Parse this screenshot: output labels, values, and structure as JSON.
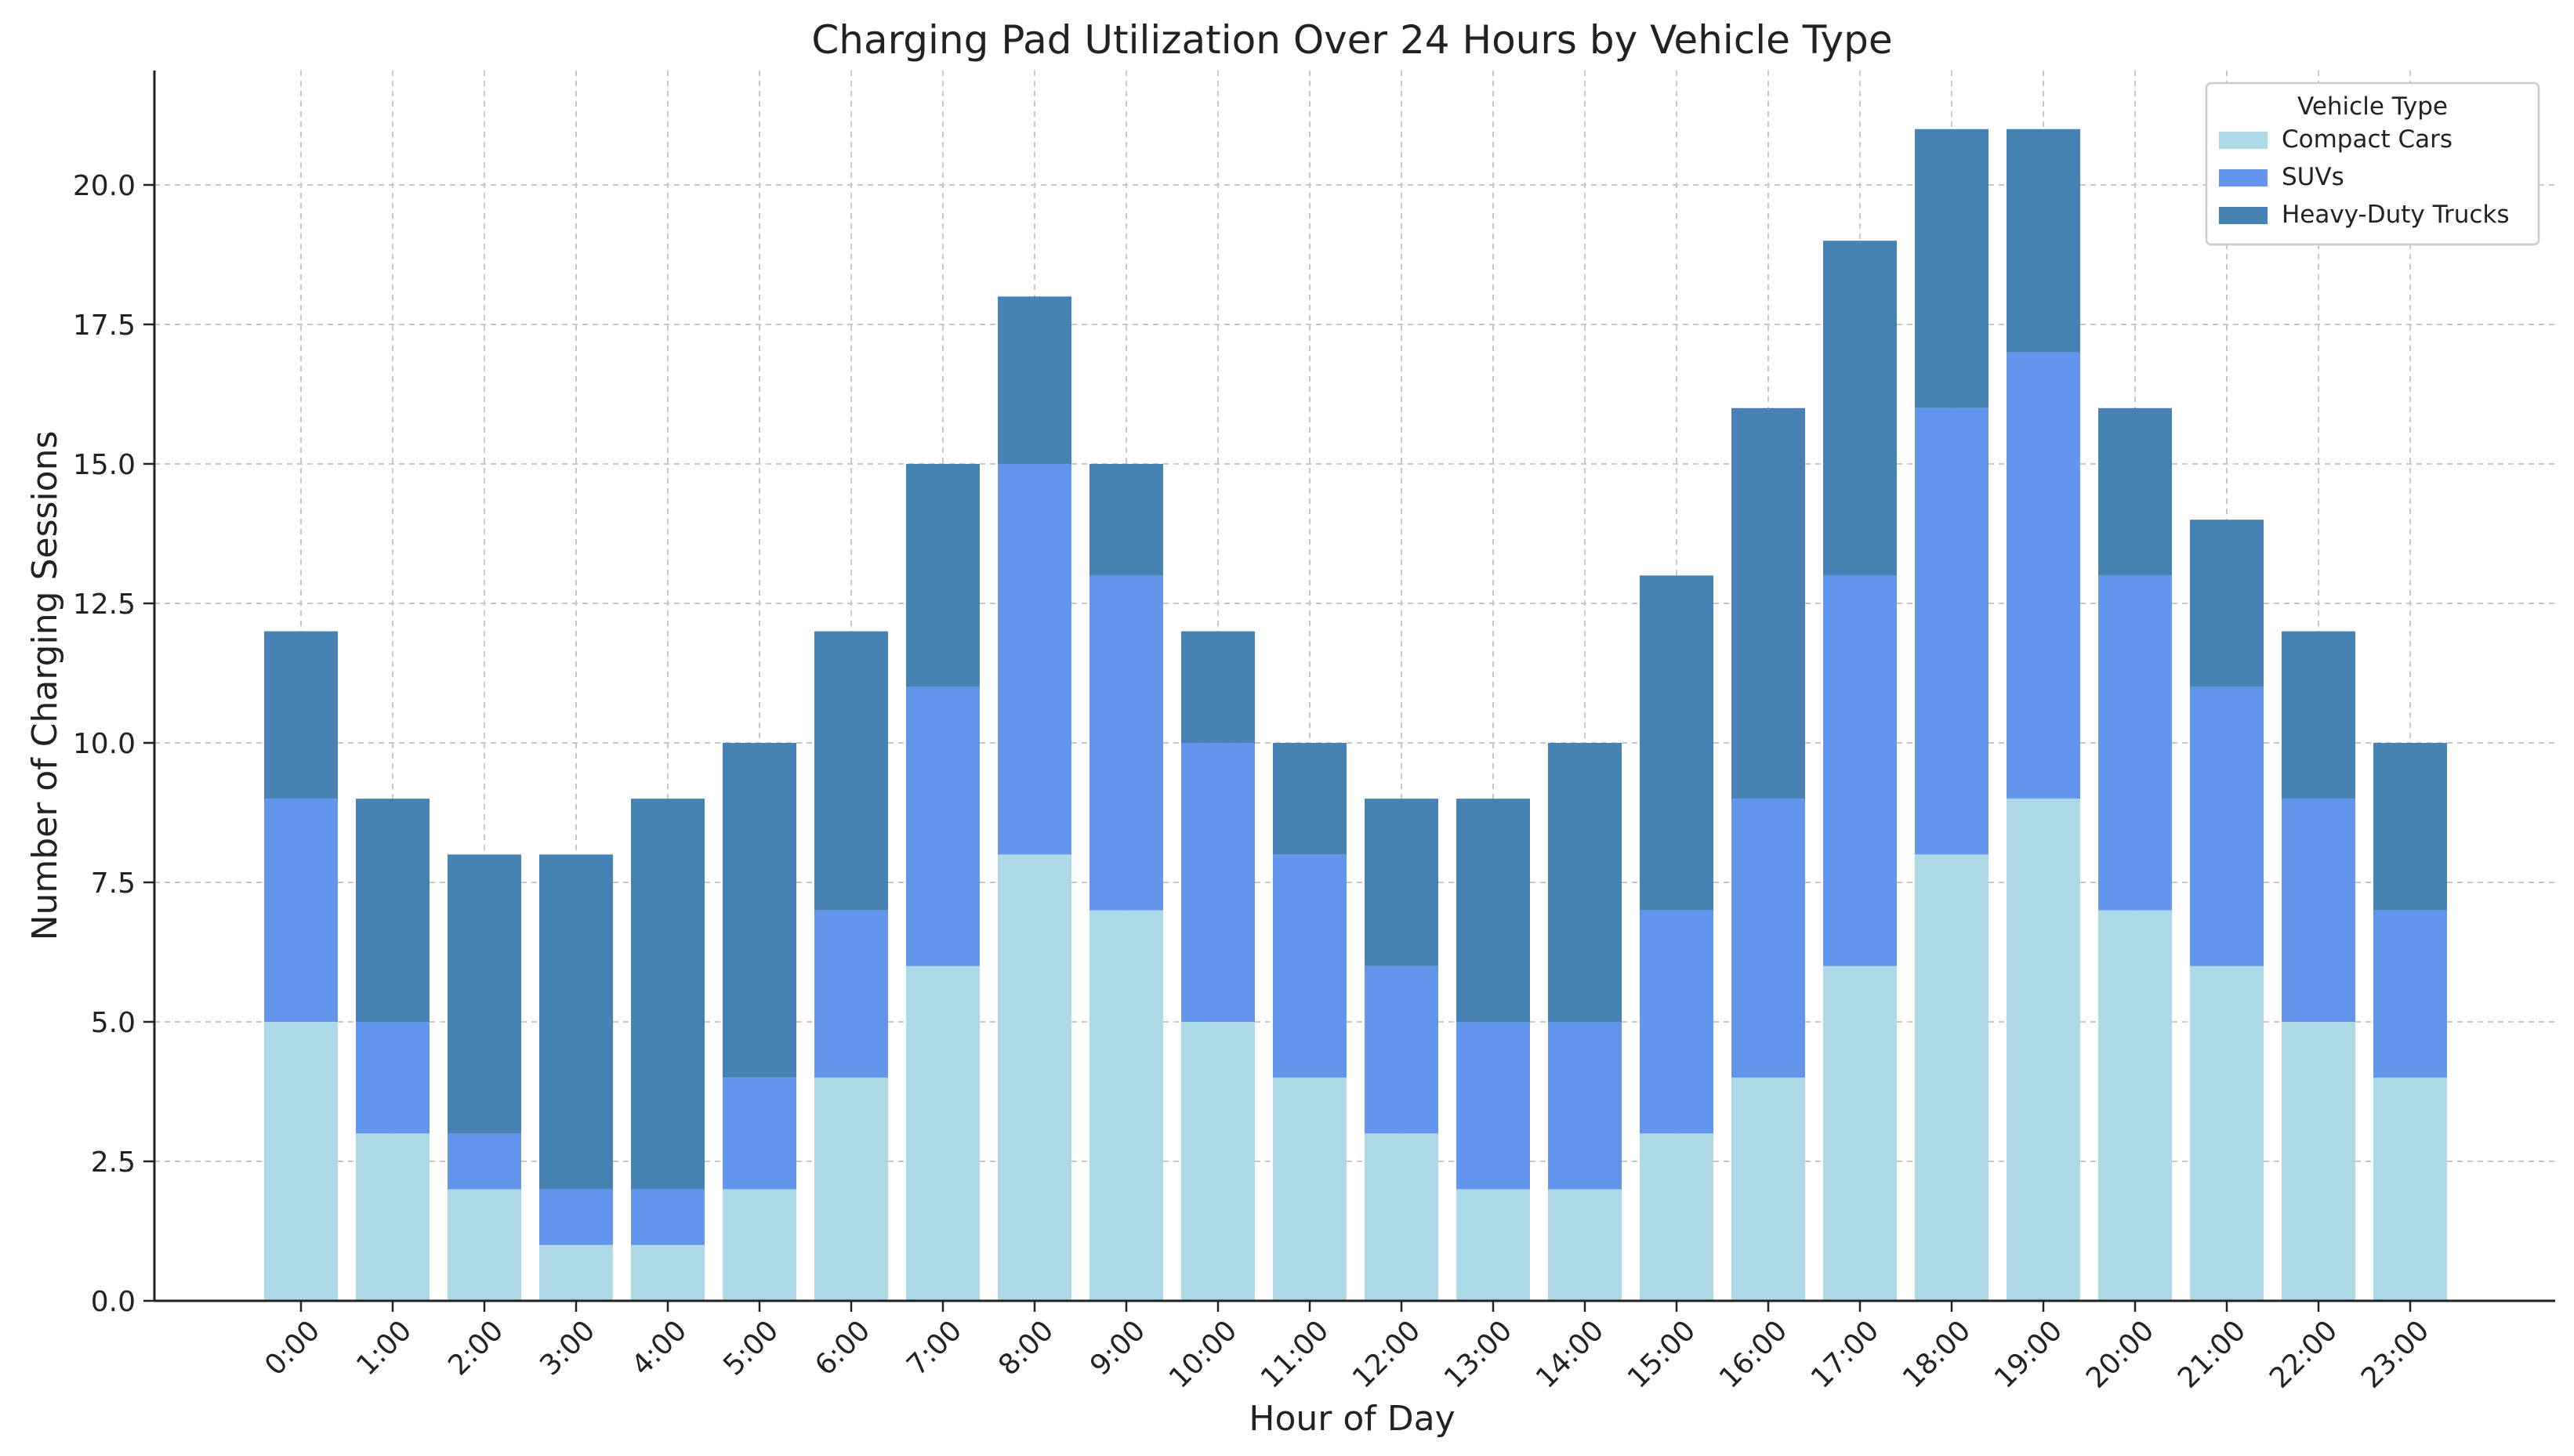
{
  "chart_data": {
    "type": "bar",
    "stacked": true,
    "title": "Charging Pad Utilization Over 24 Hours by Vehicle Type",
    "xlabel": "Hour of Day",
    "ylabel": "Number of Charging Sessions",
    "categories": [
      "0:00",
      "1:00",
      "2:00",
      "3:00",
      "4:00",
      "5:00",
      "6:00",
      "7:00",
      "8:00",
      "9:00",
      "10:00",
      "11:00",
      "12:00",
      "13:00",
      "14:00",
      "15:00",
      "16:00",
      "17:00",
      "18:00",
      "19:00",
      "20:00",
      "21:00",
      "22:00",
      "23:00"
    ],
    "series": [
      {
        "name": "Compact Cars",
        "color": "#add8e6",
        "values": [
          5,
          3,
          2,
          1,
          1,
          2,
          4,
          6,
          8,
          7,
          5,
          4,
          3,
          2,
          2,
          3,
          4,
          6,
          8,
          9,
          7,
          6,
          5,
          4
        ]
      },
      {
        "name": "SUVs",
        "color": "#6495ed",
        "values": [
          4,
          2,
          1,
          1,
          1,
          2,
          3,
          5,
          7,
          6,
          5,
          4,
          3,
          3,
          3,
          4,
          5,
          7,
          8,
          8,
          6,
          5,
          4,
          3
        ]
      },
      {
        "name": "Heavy-Duty Trucks",
        "color": "#4682b4",
        "values": [
          3,
          4,
          5,
          6,
          7,
          6,
          5,
          4,
          3,
          2,
          2,
          2,
          3,
          4,
          5,
          6,
          7,
          6,
          5,
          4,
          3,
          3,
          3,
          3
        ]
      }
    ],
    "ylim": [
      0,
      22.05
    ],
    "yticks": [
      "0.0",
      "2.5",
      "5.0",
      "7.5",
      "10.0",
      "12.5",
      "15.0",
      "17.5",
      "20.0"
    ],
    "ytick_values": [
      0,
      2.5,
      5,
      7.5,
      10,
      12.5,
      15,
      17.5,
      20
    ],
    "grid": true,
    "legend": {
      "title": "Vehicle Type",
      "placement": "top-right"
    }
  }
}
